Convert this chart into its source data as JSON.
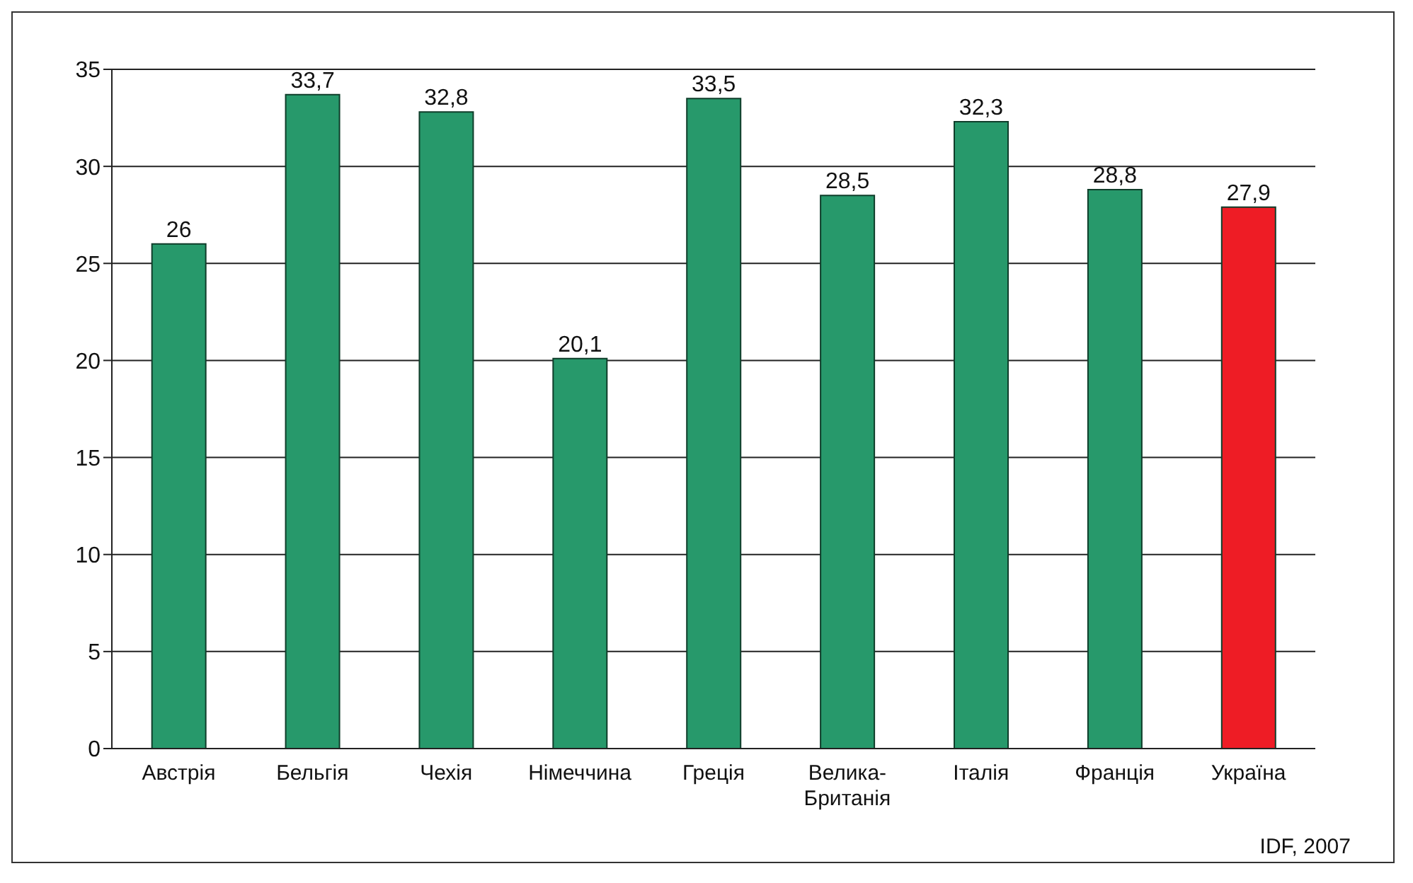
{
  "chart_data": {
    "type": "bar",
    "categories": [
      "Австрія",
      "Бельгія",
      "Чехія",
      "Німеччина",
      "Греція",
      "Велика-Британія",
      "Італія",
      "Франція",
      "Україна"
    ],
    "values": [
      26,
      33.7,
      32.8,
      20.1,
      33.5,
      28.5,
      32.3,
      28.8,
      27.9
    ],
    "colors": [
      "#27996b",
      "#27996b",
      "#27996b",
      "#27996b",
      "#27996b",
      "#27996b",
      "#27996b",
      "#27996b",
      "#ee1c25"
    ],
    "value_labels": [
      "26",
      "33,7",
      "32,8",
      "20,1",
      "33,5",
      "28,5",
      "32,3",
      "28,8",
      "27,9"
    ],
    "ylim": [
      0,
      35
    ],
    "yticks": [
      0,
      5,
      10,
      15,
      20,
      25,
      30,
      35
    ],
    "grid": "y",
    "annotations": [
      "IDF, 2007"
    ]
  }
}
